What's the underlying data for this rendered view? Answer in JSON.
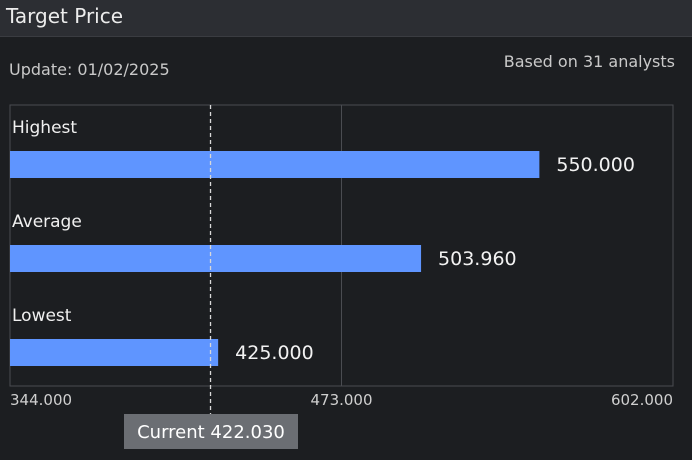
{
  "header": {
    "title": "Target Price"
  },
  "info": {
    "update": "Update: 01/02/2025",
    "analysts": "Based on 31 analysts"
  },
  "colors": {
    "bar": "#5f95ff",
    "background": "#1c1e21",
    "grid": "#4a4c51"
  },
  "chart_data": {
    "type": "bar",
    "orientation": "horizontal",
    "categories": [
      "Highest",
      "Average",
      "Lowest"
    ],
    "values": [
      550.0,
      503.96,
      425.0
    ],
    "value_labels": [
      "550.000",
      "503.960",
      "425.000"
    ],
    "xlim": [
      344.0,
      602.0
    ],
    "xticks": [
      344.0,
      473.0,
      602.0
    ],
    "xtick_labels": [
      "344.000",
      "473.000",
      "602.000"
    ],
    "reference_line": {
      "value": 422.03,
      "label": "Current 422.030",
      "style": "dashed"
    },
    "grid": true
  }
}
